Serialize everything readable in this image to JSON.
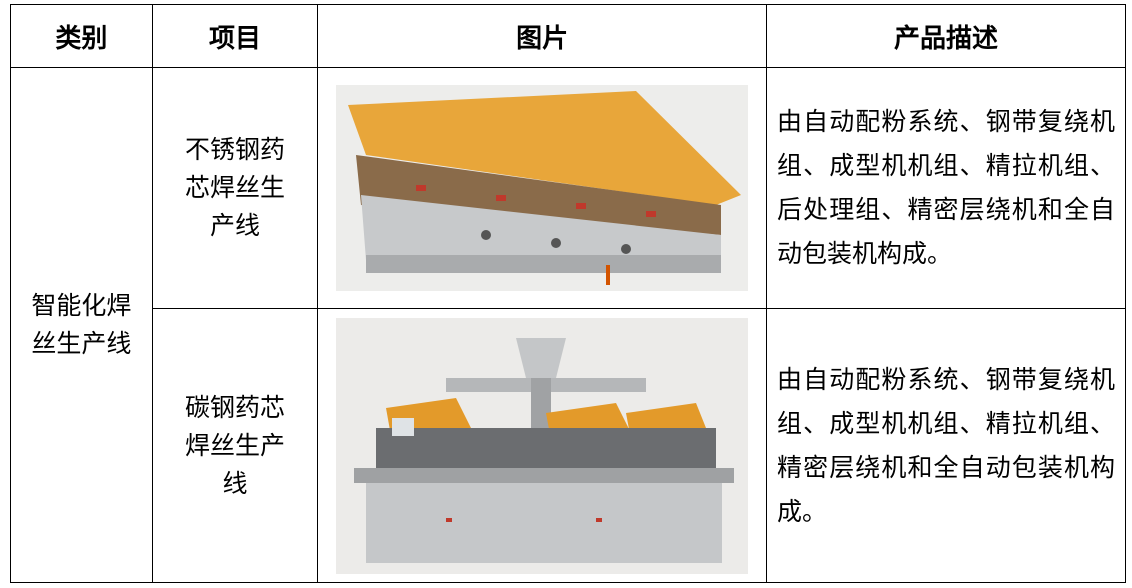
{
  "table": {
    "headers": [
      "类别",
      "项目",
      "图片",
      "产品描述"
    ],
    "category": "智能化焊丝生产线",
    "rows": [
      {
        "item": "不锈钢药芯焊丝生产线",
        "description": "由自动配粉系统、钢带复绕机组、成型机机组、精拉机组、后处理组、精密层绕机和全自动包装机构成。"
      },
      {
        "item": "碳钢药芯焊丝生产线",
        "description": "由自动配粉系统、钢带复绕机组、成型机机组、精拉机组、精密层绕机和全自动包装机构成。"
      }
    ]
  }
}
